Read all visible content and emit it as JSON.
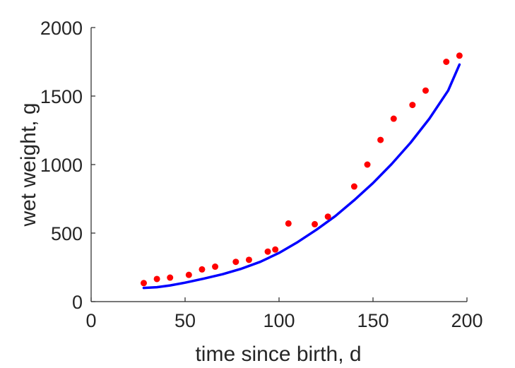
{
  "chart_data": {
    "type": "scatter",
    "title": "",
    "xlabel": "time since birth, d",
    "ylabel": "wet weight, g",
    "xlim": [
      0,
      200
    ],
    "ylim": [
      0,
      2000
    ],
    "xticks": [
      0,
      50,
      100,
      150,
      200
    ],
    "yticks": [
      0,
      500,
      1000,
      1500,
      2000
    ],
    "grid": false,
    "legend": "none",
    "series": [
      {
        "kind": "scatter",
        "color": "#ff0000",
        "x": [
          28,
          35,
          42,
          52,
          59,
          66,
          77,
          84,
          94,
          98,
          105,
          119,
          126,
          140,
          147,
          154,
          161,
          171,
          178,
          189,
          196
        ],
        "y": [
          135,
          165,
          175,
          195,
          235,
          255,
          290,
          305,
          365,
          380,
          570,
          565,
          620,
          840,
          1000,
          1180,
          1335,
          1435,
          1540,
          1750,
          1795
        ]
      },
      {
        "kind": "line",
        "color": "#0000ff",
        "x": [
          28,
          35,
          42,
          50,
          60,
          70,
          80,
          90,
          100,
          110,
          120,
          130,
          140,
          150,
          160,
          170,
          180,
          190,
          196
        ],
        "y": [
          100,
          105,
          118,
          138,
          168,
          200,
          240,
          290,
          355,
          435,
          525,
          625,
          740,
          865,
          1005,
          1160,
          1335,
          1540,
          1730
        ]
      }
    ]
  }
}
